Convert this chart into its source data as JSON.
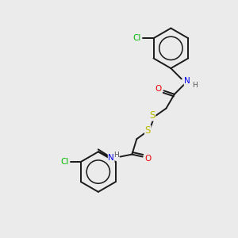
{
  "bg_color": "#ebebeb",
  "bond_color": "#1a1a1a",
  "atom_colors": {
    "N": "#0000ee",
    "O": "#ee0000",
    "S": "#bbbb00",
    "Cl": "#00bb00",
    "H": "#555555"
  },
  "figsize": [
    3.0,
    3.0
  ],
  "dpi": 100,
  "lw": 1.4,
  "fontsize": 7.5
}
